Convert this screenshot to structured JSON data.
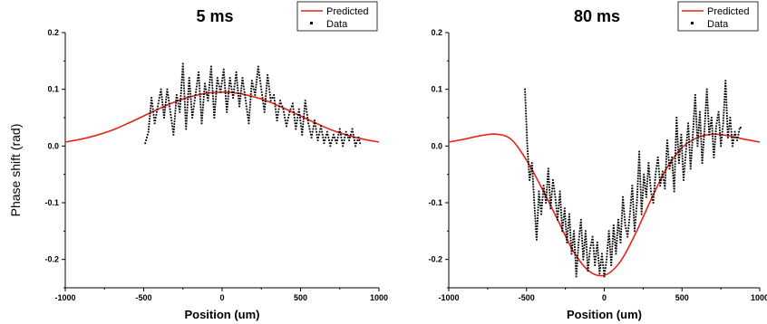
{
  "figure": {
    "ylabel": "Phase shift (rad)"
  },
  "colors": {
    "predicted": "#e8221b",
    "data": "#000000",
    "axis": "#000000"
  },
  "chart_data": [
    {
      "type": "line",
      "title": "5 ms",
      "xlabel": "Position (um)",
      "ylabel": "Phase shift (rad)",
      "xlim": [
        -1000,
        1000
      ],
      "ylim": [
        -0.25,
        0.2
      ],
      "xticks": [
        -1000,
        -500,
        0,
        500,
        1000
      ],
      "xtick_labels": [
        "-1000",
        "-500",
        "0",
        "500",
        "1000"
      ],
      "yticks": [
        -0.2,
        -0.1,
        0.0,
        0.1,
        0.2
      ],
      "ytick_labels": [
        "-0.2",
        "-0.1",
        "0.0",
        "0.1",
        "0.2"
      ],
      "legend": {
        "position": "top-right",
        "entries": [
          "Predicted",
          "Data"
        ]
      },
      "series": [
        {
          "name": "Predicted",
          "style": "line",
          "x": [
            -1000,
            -900,
            -800,
            -700,
            -600,
            -500,
            -400,
            -300,
            -200,
            -100,
            0,
            100,
            200,
            300,
            400,
            500,
            600,
            700,
            800,
            900,
            1000
          ],
          "y": [
            0.007,
            0.012,
            0.019,
            0.028,
            0.04,
            0.053,
            0.066,
            0.078,
            0.087,
            0.093,
            0.095,
            0.093,
            0.087,
            0.078,
            0.066,
            0.053,
            0.04,
            0.028,
            0.019,
            0.012,
            0.007
          ]
        },
        {
          "name": "Data",
          "style": "dots",
          "x": [
            -490,
            -470,
            -450,
            -430,
            -410,
            -390,
            -370,
            -350,
            -330,
            -310,
            -290,
            -270,
            -250,
            -230,
            -210,
            -190,
            -170,
            -150,
            -130,
            -110,
            -90,
            -70,
            -50,
            -30,
            -10,
            10,
            30,
            50,
            70,
            90,
            110,
            130,
            150,
            170,
            190,
            210,
            230,
            250,
            270,
            290,
            310,
            330,
            350,
            370,
            390,
            410,
            430,
            450,
            470,
            490,
            510,
            530,
            550,
            570,
            590,
            610,
            630,
            650,
            670,
            690,
            710,
            730,
            750,
            770,
            790,
            810,
            830,
            850,
            870,
            885
          ],
          "y": [
            0.005,
            0.025,
            0.085,
            0.04,
            0.07,
            0.1,
            0.05,
            0.1,
            0.06,
            0.02,
            0.09,
            0.06,
            0.145,
            0.03,
            0.12,
            0.05,
            0.09,
            0.13,
            0.04,
            0.11,
            0.08,
            0.14,
            0.05,
            0.12,
            0.095,
            0.135,
            0.06,
            0.12,
            0.085,
            0.13,
            0.07,
            0.12,
            0.08,
            0.04,
            0.115,
            0.09,
            0.14,
            0.1,
            0.06,
            0.125,
            0.08,
            0.09,
            0.045,
            0.08,
            0.065,
            0.035,
            0.06,
            0.075,
            0.03,
            0.065,
            0.02,
            0.08,
            0.04,
            0.015,
            0.045,
            0.01,
            0.035,
            0.005,
            0.025,
            0.0,
            0.02,
            0.005,
            0.03,
            0.0,
            0.025,
            0.01,
            0.03,
            0.0,
            0.015,
            0.0
          ]
        }
      ]
    },
    {
      "type": "line",
      "title": "80 ms",
      "xlabel": "Position (um)",
      "ylabel": "",
      "xlim": [
        -1000,
        1000
      ],
      "ylim": [
        -0.25,
        0.2
      ],
      "xticks": [
        -1000,
        -500,
        0,
        500,
        1000
      ],
      "xtick_labels": [
        "-1000",
        "-500",
        "0",
        "500",
        "1000"
      ],
      "yticks": [
        -0.2,
        -0.1,
        0.0,
        0.1,
        0.2
      ],
      "ytick_labels": [
        "-0.2",
        "-0.1",
        "0.0",
        "0.1",
        "0.2"
      ],
      "legend": {
        "position": "top-right",
        "entries": [
          "Predicted",
          "Data"
        ]
      },
      "series": [
        {
          "name": "Predicted",
          "style": "line",
          "x": [
            -1000,
            -900,
            -800,
            -700,
            -600,
            -500,
            -400,
            -300,
            -200,
            -100,
            0,
            100,
            200,
            300,
            400,
            500,
            600,
            700,
            800,
            900,
            1000
          ],
          "y": [
            0.007,
            0.012,
            0.018,
            0.021,
            0.012,
            -0.025,
            -0.075,
            -0.13,
            -0.185,
            -0.22,
            -0.228,
            -0.205,
            -0.155,
            -0.095,
            -0.04,
            -0.003,
            0.015,
            0.021,
            0.018,
            0.012,
            0.007
          ]
        },
        {
          "name": "Data",
          "style": "dots",
          "x": [
            -510,
            -495,
            -480,
            -465,
            -450,
            -435,
            -420,
            -405,
            -390,
            -375,
            -360,
            -345,
            -330,
            -315,
            -300,
            -285,
            -270,
            -255,
            -240,
            -225,
            -210,
            -195,
            -180,
            -165,
            -150,
            -135,
            -120,
            -105,
            -90,
            -75,
            -60,
            -45,
            -30,
            -15,
            0,
            15,
            30,
            45,
            60,
            75,
            90,
            105,
            120,
            135,
            150,
            165,
            180,
            195,
            210,
            225,
            240,
            255,
            270,
            285,
            300,
            315,
            330,
            345,
            360,
            375,
            390,
            405,
            420,
            435,
            450,
            465,
            480,
            495,
            510,
            525,
            540,
            555,
            570,
            585,
            600,
            615,
            630,
            645,
            660,
            675,
            690,
            705,
            720,
            735,
            750,
            765,
            780,
            795,
            810,
            825,
            840,
            855,
            870,
            885
          ],
          "y": [
            0.1,
            0.0,
            -0.06,
            -0.03,
            -0.1,
            -0.165,
            -0.08,
            -0.12,
            -0.07,
            -0.1,
            -0.04,
            -0.11,
            -0.06,
            -0.09,
            -0.13,
            -0.08,
            -0.15,
            -0.11,
            -0.17,
            -0.12,
            -0.19,
            -0.15,
            -0.23,
            -0.17,
            -0.13,
            -0.2,
            -0.15,
            -0.22,
            -0.18,
            -0.16,
            -0.21,
            -0.17,
            -0.225,
            -0.19,
            -0.23,
            -0.2,
            -0.15,
            -0.21,
            -0.14,
            -0.19,
            -0.13,
            -0.17,
            -0.09,
            -0.14,
            -0.16,
            -0.12,
            -0.07,
            -0.15,
            -0.1,
            -0.01,
            -0.12,
            -0.05,
            -0.09,
            -0.03,
            -0.08,
            -0.1,
            -0.05,
            -0.02,
            -0.07,
            -0.045,
            -0.075,
            0.01,
            -0.04,
            -0.02,
            -0.08,
            0.05,
            -0.03,
            0.02,
            -0.06,
            -0.01,
            0.04,
            -0.04,
            0.02,
            0.09,
            0.0,
            0.06,
            -0.03,
            0.03,
            0.1,
            0.02,
            0.05,
            -0.02,
            0.035,
            0.06,
            0.0,
            0.04,
            0.115,
            0.015,
            0.05,
            0.0,
            0.025,
            0.01,
            0.03,
            0.035
          ]
        }
      ]
    }
  ]
}
